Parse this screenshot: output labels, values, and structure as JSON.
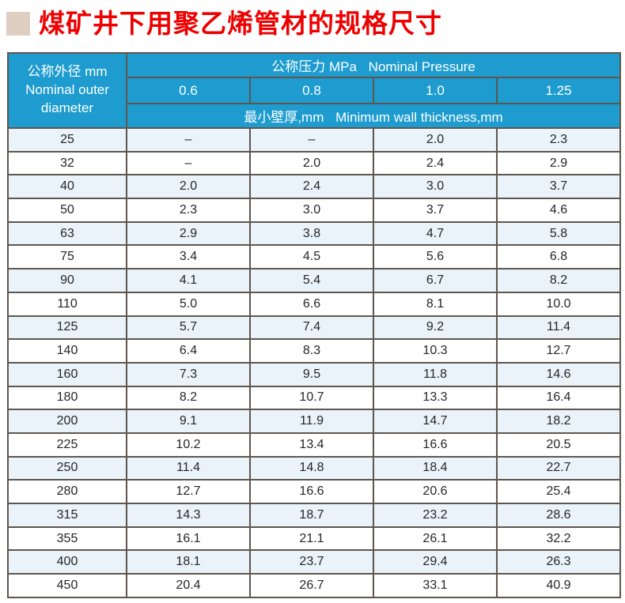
{
  "title": {
    "text": "煤矿井下用聚乙烯管材的规格尺寸"
  },
  "colors": {
    "title_red": "#ee0000",
    "bullet_beige": "#decfc2",
    "header_blue": "#1e9ccf",
    "row_tint": "#e9f3f9",
    "border": "#5f564f",
    "text": "#262626"
  },
  "table": {
    "outer_diameter_header": {
      "zh": "公称外径 mm",
      "en": "Nominal outer diameter"
    },
    "pressure_header": {
      "zh": "公称压力 MPa",
      "en": "Nominal Pressure"
    },
    "pressures": [
      "0.6",
      "0.8",
      "1.0",
      "1.25"
    ],
    "wall_thickness_header": {
      "zh": "最小壁厚,mm",
      "en": "Minimum wall thickness,mm"
    },
    "rows": [
      {
        "diameter": "25",
        "values": [
          "–",
          "–",
          "2.0",
          "2.3"
        ]
      },
      {
        "diameter": "32",
        "values": [
          "–",
          "2.0",
          "2.4",
          "2.9"
        ]
      },
      {
        "diameter": "40",
        "values": [
          "2.0",
          "2.4",
          "3.0",
          "3.7"
        ]
      },
      {
        "diameter": "50",
        "values": [
          "2.3",
          "3.0",
          "3.7",
          "4.6"
        ]
      },
      {
        "diameter": "63",
        "values": [
          "2.9",
          "3.8",
          "4.7",
          "5.8"
        ]
      },
      {
        "diameter": "75",
        "values": [
          "3.4",
          "4.5",
          "5.6",
          "6.8"
        ]
      },
      {
        "diameter": "90",
        "values": [
          "4.1",
          "5.4",
          "6.7",
          "8.2"
        ]
      },
      {
        "diameter": "110",
        "values": [
          "5.0",
          "6.6",
          "8.1",
          "10.0"
        ]
      },
      {
        "diameter": "125",
        "values": [
          "5.7",
          "7.4",
          "9.2",
          "11.4"
        ]
      },
      {
        "diameter": "140",
        "values": [
          "6.4",
          "8.3",
          "10.3",
          "12.7"
        ]
      },
      {
        "diameter": "160",
        "values": [
          "7.3",
          "9.5",
          "11.8",
          "14.6"
        ]
      },
      {
        "diameter": "180",
        "values": [
          "8.2",
          "10.7",
          "13.3",
          "16.4"
        ]
      },
      {
        "diameter": "200",
        "values": [
          "9.1",
          "11.9",
          "14.7",
          "18.2"
        ]
      },
      {
        "diameter": "225",
        "values": [
          "10.2",
          "13.4",
          "16.6",
          "20.5"
        ]
      },
      {
        "diameter": "250",
        "values": [
          "11.4",
          "14.8",
          "18.4",
          "22.7"
        ]
      },
      {
        "diameter": "280",
        "values": [
          "12.7",
          "16.6",
          "20.6",
          "25.4"
        ]
      },
      {
        "diameter": "315",
        "values": [
          "14.3",
          "18.7",
          "23.2",
          "28.6"
        ]
      },
      {
        "diameter": "355",
        "values": [
          "16.1",
          "21.1",
          "26.1",
          "32.2"
        ]
      },
      {
        "diameter": "400",
        "values": [
          "18.1",
          "23.7",
          "29.4",
          "26.3"
        ]
      },
      {
        "diameter": "450",
        "values": [
          "20.4",
          "26.7",
          "33.1",
          "40.9"
        ]
      }
    ]
  }
}
